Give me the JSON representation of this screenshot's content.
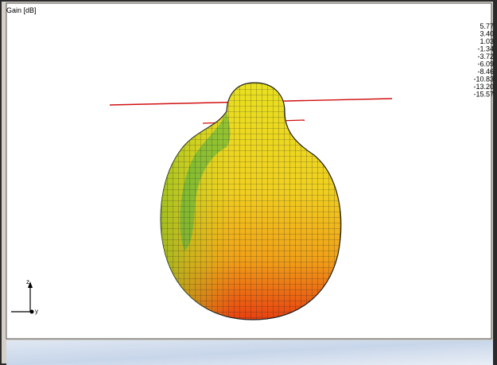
{
  "plot": {
    "legend_title": "Gain [dB]",
    "scale_labels": [
      "5.77",
      "3.40",
      "1.03",
      "-1.34",
      "-3.72",
      "-6.09",
      "-8.46",
      "-10.83",
      "-13.20",
      "-15.57"
    ],
    "axis_labels": {
      "z": "z",
      "y": "y"
    }
  }
}
